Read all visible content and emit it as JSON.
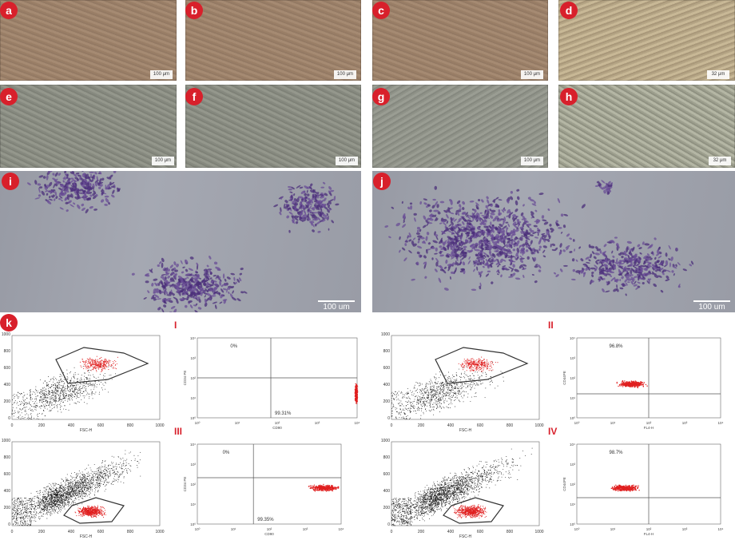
{
  "panels": {
    "a": {
      "label": "a",
      "scale": "100 μm"
    },
    "b": {
      "label": "b",
      "scale": "100 μm"
    },
    "c": {
      "label": "c",
      "scale": "100 μm"
    },
    "d": {
      "label": "d",
      "scale": "32 μm"
    },
    "e": {
      "label": "e",
      "scale": "100 μm"
    },
    "f": {
      "label": "f",
      "scale": "100 μm"
    },
    "g": {
      "label": "g",
      "scale": "100 μm"
    },
    "h": {
      "label": "h",
      "scale": "32 μm"
    },
    "i": {
      "label": "i",
      "scale": "100 um"
    },
    "j": {
      "label": "j",
      "scale": "100 um"
    },
    "k": {
      "label": "k"
    }
  },
  "flow": {
    "scatter_axes": {
      "x_label": "FSC-H",
      "y_label": "SSC-H",
      "ticks": [
        "0",
        "200",
        "400",
        "600",
        "800",
        "1000"
      ]
    },
    "I": {
      "label": "I",
      "y_label": "CD34 PE",
      "x_label": "CD90",
      "upper_left": "0%",
      "lower_right": "99.31%"
    },
    "II": {
      "label": "II",
      "y_label": "CD44PE",
      "x_label": "FL4-H",
      "upper_left": "96.8%"
    },
    "III": {
      "label": "III",
      "y_label": "CD34 PE",
      "x_label": "CD90",
      "upper_left": "0%",
      "lower_right": "99.35%"
    },
    "IV": {
      "label": "IV",
      "y_label": "CD44PE",
      "x_label": "FL4-H",
      "upper_left": "98.7%"
    },
    "log_ticks": [
      "10⁰",
      "10¹",
      "10²",
      "10³",
      "10⁴"
    ]
  },
  "colors": {
    "badge": "#d8202b",
    "gate": "#333333",
    "events_red": "#e02020",
    "events_black": "#111111"
  }
}
